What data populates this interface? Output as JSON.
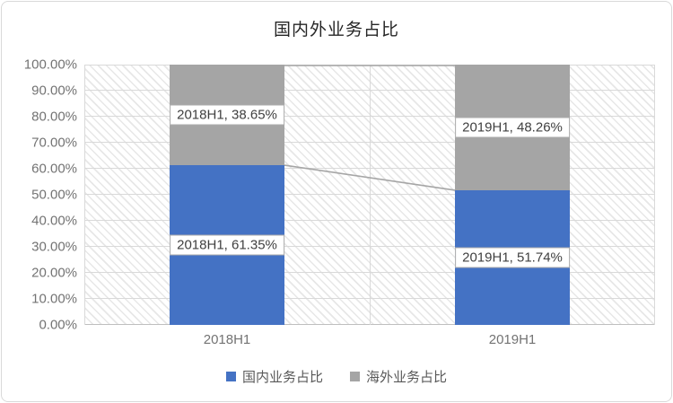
{
  "chart_data": {
    "type": "bar",
    "stacked": true,
    "stack_unit": "percent",
    "title": "国内外业务占比",
    "categories": [
      "2018H1",
      "2019H1"
    ],
    "series": [
      {
        "name": "国内业务占比",
        "color": "#4472C4",
        "values": [
          61.35,
          51.74
        ],
        "data_labels": [
          "2018H1, 61.35%",
          "2019H1, 51.74%"
        ]
      },
      {
        "name": "海外业务占比",
        "color": "#A5A5A5",
        "values": [
          38.65,
          48.26
        ],
        "data_labels": [
          "2018H1, 38.65%",
          "2019H1, 48.26%"
        ]
      }
    ],
    "y_axis": {
      "min": 0,
      "max": 100,
      "step": 10,
      "tick_labels": [
        "0.00%",
        "10.00%",
        "20.00%",
        "30.00%",
        "40.00%",
        "50.00%",
        "60.00%",
        "70.00%",
        "80.00%",
        "90.00%",
        "100.00%"
      ]
    },
    "x_axis": {
      "tick_labels": [
        "2018H1",
        "2019H1"
      ]
    },
    "legend": {
      "position": "bottom",
      "entries": [
        "国内业务占比",
        "海外业务占比"
      ]
    },
    "grid": true,
    "series_lines": true,
    "plot_background": "light-diagonal-hatch",
    "ylim": [
      0,
      100
    ],
    "colors": {
      "grid": "#D9D9D9",
      "axis_line": "#BFBFBF",
      "axis_text": "#737373",
      "title_text": "#262626",
      "legend_text": "#595959",
      "data_label_text": "#404040",
      "data_label_border": "#ABABAB",
      "series_line": "#A6A6A6",
      "card_border": "#D9D9D9"
    }
  }
}
